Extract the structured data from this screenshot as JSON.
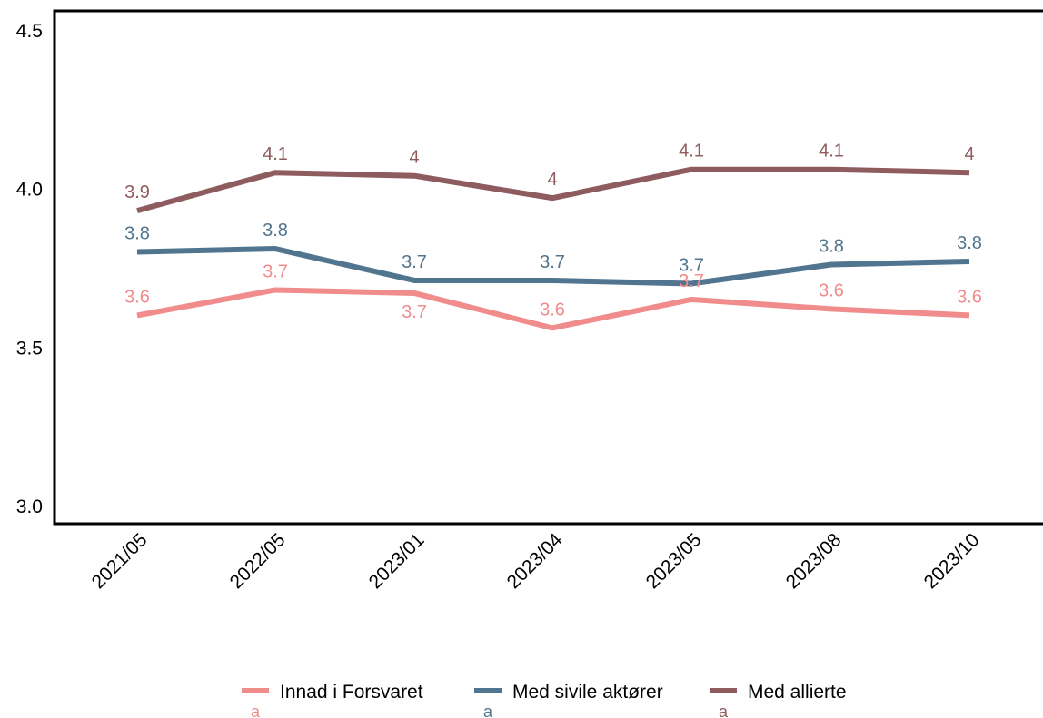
{
  "chart_data": {
    "type": "line",
    "title": "",
    "xlabel": "",
    "ylabel": "",
    "categories": [
      "2021/05",
      "2022/05",
      "2023/01",
      "2023/04",
      "2023/05",
      "2023/08",
      "2023/10"
    ],
    "ylim": [
      3.0,
      4.5
    ],
    "yticks": [
      "3.0",
      "3.5",
      "4.0",
      "4.5"
    ],
    "grid": false,
    "legend_position": "bottom",
    "series": [
      {
        "name": "Innad i Forsvaret",
        "legend_sub": "a",
        "color": "#F08C8C",
        "values": [
          3.6,
          3.68,
          3.67,
          3.56,
          3.65,
          3.62,
          3.6
        ],
        "labels": [
          "3.6",
          "3.7",
          "3.7",
          "3.6",
          "3.7",
          "3.6",
          "3.6"
        ],
        "label_side": [
          "above",
          "above",
          "below",
          "above",
          "above",
          "above",
          "above"
        ]
      },
      {
        "name": "Med sivile aktører",
        "legend_sub": "a",
        "color": "#51758F",
        "values": [
          3.8,
          3.81,
          3.71,
          3.71,
          3.7,
          3.76,
          3.77
        ],
        "labels": [
          "3.8",
          "3.8",
          "3.7",
          "3.7",
          "3.7",
          "3.8",
          "3.8"
        ],
        "label_side": [
          "above",
          "above",
          "above",
          "above",
          "above",
          "above",
          "above"
        ]
      },
      {
        "name": "Med allierte",
        "legend_sub": "a",
        "color": "#8E5B5E",
        "values": [
          3.93,
          4.05,
          4.04,
          3.97,
          4.06,
          4.06,
          4.05
        ],
        "labels": [
          "3.9",
          "4.1",
          "4",
          "4",
          "4.1",
          "4.1",
          "4"
        ],
        "label_side": [
          "above",
          "above",
          "above",
          "above",
          "above",
          "above",
          "above"
        ]
      }
    ]
  }
}
